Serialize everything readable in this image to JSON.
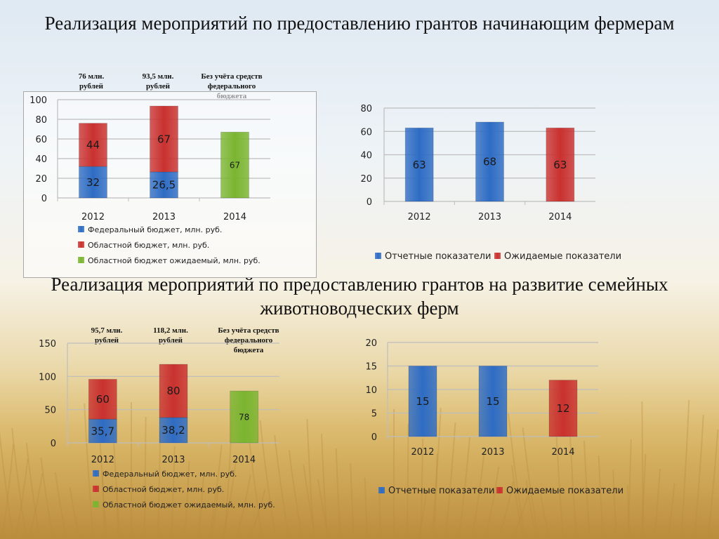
{
  "slide": {
    "title1": "Реализация мероприятий по предоставлению грантов начинающим фермерам",
    "title2": "Реализация мероприятий по предоставлению грантов на развитие семейных животноводческих ферм",
    "notes1": [
      "76 млн. рублей",
      "93,5 млн. рублей",
      "Без учёта средств федерального бюджета"
    ],
    "notes2": [
      "95,7 млн. рублей",
      "118,2 млн. рублей",
      "Без учёта средств федерального бюджета"
    ]
  },
  "colors": {
    "blue": "#2e6cc4",
    "red": "#c9312f",
    "green": "#7ab530",
    "grid": "#bdbdbd"
  },
  "chart_data": [
    {
      "type": "bar",
      "stacked": true,
      "categories": [
        "2012",
        "2013",
        "2014"
      ],
      "series": [
        {
          "name": "Федеральный бюджет, млн. руб.",
          "values": [
            32,
            26.5,
            null
          ],
          "labels": [
            "32",
            "26,5",
            ""
          ]
        },
        {
          "name": "Областной бюджет, млн. руб.",
          "values": [
            44,
            67,
            null
          ],
          "labels": [
            "44",
            "67",
            ""
          ]
        },
        {
          "name": "Областной бюджет ожидаемый, млн. руб.",
          "values": [
            null,
            null,
            67
          ],
          "labels": [
            "",
            "",
            "67"
          ]
        }
      ],
      "yticks": [
        "100",
        "80",
        "60",
        "40",
        "20",
        "0"
      ],
      "ylim": [
        0,
        100
      ],
      "legend": "bottom"
    },
    {
      "type": "bar",
      "categories": [
        "2012",
        "2013",
        "2014"
      ],
      "series": [
        {
          "name": "Отчетные показатели",
          "values": [
            63,
            68,
            null
          ],
          "labels": [
            "63",
            "68",
            ""
          ]
        },
        {
          "name": "Ожидаемые показатели",
          "values": [
            null,
            null,
            63
          ],
          "labels": [
            "",
            "",
            "63"
          ]
        }
      ],
      "yticks": [
        "80",
        "60",
        "40",
        "20",
        "0"
      ],
      "ylim": [
        0,
        80
      ],
      "legend": "bottom"
    },
    {
      "type": "bar",
      "stacked": true,
      "categories": [
        "2012",
        "2013",
        "2014"
      ],
      "series": [
        {
          "name": "Федеральный бюджет, млн. руб.",
          "values": [
            35.7,
            38.2,
            null
          ],
          "labels": [
            "35,7",
            "38,2",
            ""
          ]
        },
        {
          "name": "Областной бюджет, млн. руб.",
          "values": [
            60,
            80,
            null
          ],
          "labels": [
            "60",
            "80",
            ""
          ]
        },
        {
          "name": "Областной бюджет ожидаемый, млн. руб.",
          "values": [
            null,
            null,
            78
          ],
          "labels": [
            "",
            "",
            "78"
          ]
        }
      ],
      "yticks": [
        "150",
        "100",
        "50",
        "0"
      ],
      "ylim": [
        0,
        150
      ],
      "legend": "bottom"
    },
    {
      "type": "bar",
      "categories": [
        "2012",
        "2013",
        "2014"
      ],
      "series": [
        {
          "name": "Отчетные показатели",
          "values": [
            15,
            15,
            null
          ],
          "labels": [
            "15",
            "15",
            ""
          ]
        },
        {
          "name": "Ожидаемые показатели",
          "values": [
            null,
            null,
            12
          ],
          "labels": [
            "",
            "",
            "12"
          ]
        }
      ],
      "yticks": [
        "20",
        "15",
        "10",
        "5",
        "0"
      ],
      "ylim": [
        0,
        20
      ],
      "legend": "bottom"
    }
  ]
}
